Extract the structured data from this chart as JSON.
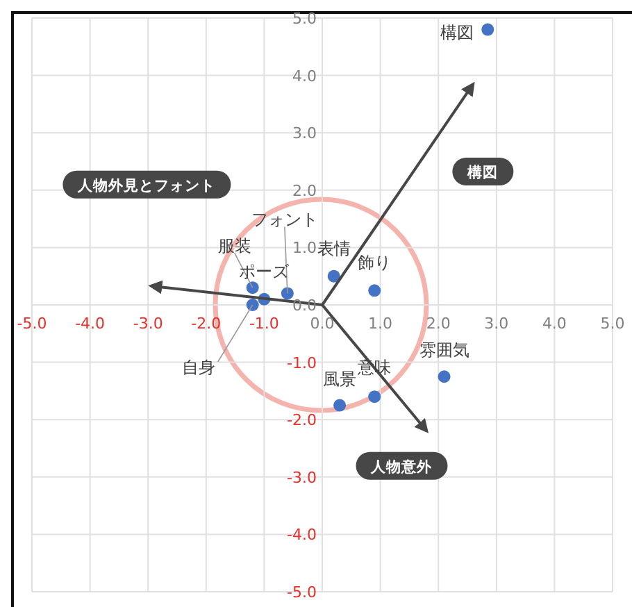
{
  "chart_data": {
    "type": "scatter",
    "xlim": [
      -5,
      5
    ],
    "ylim": [
      -5,
      5
    ],
    "xticks": [
      {
        "value": -5,
        "label": "-5.0"
      },
      {
        "value": -4,
        "label": "-4.0"
      },
      {
        "value": -3,
        "label": "-3.0"
      },
      {
        "value": -2,
        "label": "-2.0"
      },
      {
        "value": -1,
        "label": "-1.0"
      },
      {
        "value": 0,
        "label": "0.0"
      },
      {
        "value": 1,
        "label": "1.0"
      },
      {
        "value": 2,
        "label": "2.0"
      },
      {
        "value": 3,
        "label": "3.0"
      },
      {
        "value": 4,
        "label": "4.0"
      },
      {
        "value": 5,
        "label": "5.0"
      }
    ],
    "yticks": [
      {
        "value": -5,
        "label": "-5.0"
      },
      {
        "value": -4,
        "label": "-4.0"
      },
      {
        "value": -3,
        "label": "-3.0"
      },
      {
        "value": -2,
        "label": "-2.0"
      },
      {
        "value": -1,
        "label": "-1.0"
      },
      {
        "value": 0,
        "label": "0.0"
      },
      {
        "value": 1,
        "label": "1.0"
      },
      {
        "value": 2,
        "label": "2.0"
      },
      {
        "value": 3,
        "label": "3.0"
      },
      {
        "value": 4,
        "label": "4.0"
      },
      {
        "value": 5,
        "label": "5.0"
      }
    ],
    "grid": true,
    "series": [
      {
        "type": "scatter",
        "color": "#4472c4",
        "marker": "circle",
        "x": [
          2.85,
          0.2,
          0.9,
          -1.2,
          -0.6,
          -1.0,
          -1.2,
          2.1,
          0.9,
          0.3
        ],
        "values": [
          4.8,
          0.5,
          0.25,
          0.3,
          0.2,
          0.1,
          0.0,
          -1.25,
          -1.6,
          -1.75
        ]
      },
      {
        "type": "line",
        "name": "構図",
        "color": "#474747",
        "x": [
          0,
          2.6
        ],
        "values": [
          0,
          3.85
        ]
      },
      {
        "type": "line",
        "name": "人物外見とフォント",
        "color": "#474747",
        "x": [
          0,
          -2.95
        ],
        "values": [
          0,
          0.33
        ]
      },
      {
        "type": "line",
        "name": "人物意外",
        "color": "#474747",
        "x": [
          0,
          1.8
        ],
        "values": [
          0,
          -2.2
        ]
      }
    ],
    "annotations": [
      {
        "text": "構図",
        "x": 2.85,
        "y": 4.8
      },
      {
        "text": "表情",
        "x": 0.2,
        "y": 0.5
      },
      {
        "text": "飾り",
        "x": 0.9,
        "y": 0.25
      },
      {
        "text": "服装",
        "x": -1.2,
        "y": 0.3
      },
      {
        "text": "フォント",
        "x": -0.6,
        "y": 0.2
      },
      {
        "text": "ポーズ",
        "x": -1.0,
        "y": 0.1
      },
      {
        "text": "自身",
        "x": -1.2,
        "y": 0.0
      },
      {
        "text": "雰囲気",
        "x": 2.1,
        "y": -1.25
      },
      {
        "text": "意味",
        "x": 0.9,
        "y": -1.6
      },
      {
        "text": "風景",
        "x": 0.3,
        "y": -1.75
      }
    ]
  }
}
